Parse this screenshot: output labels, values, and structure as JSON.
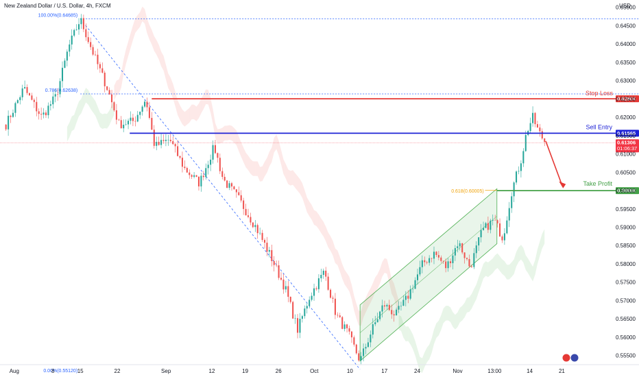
{
  "chart_data": {
    "type": "candlestick",
    "title": "New Zealand Dollar / U.S. Dollar, 4h, FXCM",
    "currency": "USD",
    "ylim": [
      0.5525,
      0.6505
    ],
    "x_ticks": [
      {
        "label": "Aug",
        "pos": 0.024
      },
      {
        "label": "8",
        "pos": 0.089
      },
      {
        "label": "15",
        "pos": 0.135
      },
      {
        "label": "22",
        "pos": 0.197
      },
      {
        "label": "Sep",
        "pos": 0.279
      },
      {
        "label": "12",
        "pos": 0.356
      },
      {
        "label": "19",
        "pos": 0.412
      },
      {
        "label": "26",
        "pos": 0.468
      },
      {
        "label": "Oct",
        "pos": 0.528
      },
      {
        "label": "10",
        "pos": 0.588
      },
      {
        "label": "17",
        "pos": 0.646
      },
      {
        "label": "24",
        "pos": 0.701
      },
      {
        "label": "Nov",
        "pos": 0.769
      },
      {
        "label": "13:00",
        "pos": 0.831
      },
      {
        "label": "14",
        "pos": 0.89
      },
      {
        "label": "21",
        "pos": 0.944
      }
    ],
    "y_ticks": [
      0.65,
      0.645,
      0.64,
      0.635,
      0.63,
      0.625,
      0.62,
      0.615,
      0.61,
      0.605,
      0.6,
      0.595,
      0.59,
      0.585,
      0.58,
      0.575,
      0.57,
      0.565,
      0.56,
      0.555
    ],
    "key_points": [
      {
        "x": 0.01,
        "y": 0.618
      },
      {
        "x": 0.04,
        "y": 0.628
      },
      {
        "x": 0.07,
        "y": 0.62
      },
      {
        "x": 0.095,
        "y": 0.626
      },
      {
        "x": 0.115,
        "y": 0.639
      },
      {
        "x": 0.135,
        "y": 0.6468
      },
      {
        "x": 0.16,
        "y": 0.636
      },
      {
        "x": 0.18,
        "y": 0.628
      },
      {
        "x": 0.2,
        "y": 0.618
      },
      {
        "x": 0.225,
        "y": 0.619
      },
      {
        "x": 0.245,
        "y": 0.625
      },
      {
        "x": 0.26,
        "y": 0.612
      },
      {
        "x": 0.285,
        "y": 0.614
      },
      {
        "x": 0.31,
        "y": 0.606
      },
      {
        "x": 0.335,
        "y": 0.602
      },
      {
        "x": 0.36,
        "y": 0.612
      },
      {
        "x": 0.375,
        "y": 0.603
      },
      {
        "x": 0.4,
        "y": 0.598
      },
      {
        "x": 0.43,
        "y": 0.59
      },
      {
        "x": 0.455,
        "y": 0.582
      },
      {
        "x": 0.48,
        "y": 0.573
      },
      {
        "x": 0.5,
        "y": 0.562
      },
      {
        "x": 0.52,
        "y": 0.571
      },
      {
        "x": 0.545,
        "y": 0.578
      },
      {
        "x": 0.565,
        "y": 0.566
      },
      {
        "x": 0.585,
        "y": 0.561
      },
      {
        "x": 0.605,
        "y": 0.5535
      },
      {
        "x": 0.625,
        "y": 0.562
      },
      {
        "x": 0.645,
        "y": 0.569
      },
      {
        "x": 0.665,
        "y": 0.566
      },
      {
        "x": 0.685,
        "y": 0.571
      },
      {
        "x": 0.71,
        "y": 0.58
      },
      {
        "x": 0.73,
        "y": 0.583
      },
      {
        "x": 0.75,
        "y": 0.579
      },
      {
        "x": 0.77,
        "y": 0.586
      },
      {
        "x": 0.79,
        "y": 0.579
      },
      {
        "x": 0.81,
        "y": 0.589
      },
      {
        "x": 0.83,
        "y": 0.592
      },
      {
        "x": 0.845,
        "y": 0.587
      },
      {
        "x": 0.86,
        "y": 0.6
      },
      {
        "x": 0.875,
        "y": 0.608
      },
      {
        "x": 0.885,
        "y": 0.616
      },
      {
        "x": 0.895,
        "y": 0.62
      },
      {
        "x": 0.905,
        "y": 0.616
      },
      {
        "x": 0.915,
        "y": 0.6135
      }
    ],
    "levels": {
      "stop_loss": {
        "label": "Stop Loss",
        "value": 0.62504,
        "tag": "0.62504",
        "color": "#e53935"
      },
      "sell_entry": {
        "label": "Sell Entry",
        "value": 0.61565,
        "tag": "0.61565",
        "color": "#1e22d6"
      },
      "take_profit": {
        "label": "Take Profit",
        "value": 0.59998,
        "tag": "0.59998",
        "color": "#43a047"
      },
      "current_price": {
        "value": 0.61306,
        "tag": "0.61306",
        "countdown": "01:06:37",
        "color": "#f23645"
      }
    },
    "fib_upper": {
      "label_100": "100.00%(0.64685)",
      "value_100": 0.64685,
      "label_78": "0.786(0.62638)",
      "value_78": 0.62638,
      "label_0": "0.00%(0.55120)",
      "value_0": 0.5512,
      "color": "#2962ff"
    },
    "fib_lower": {
      "label_618": "0.618(0.60005)",
      "value_618": 0.60005,
      "color": "#f0a30a"
    },
    "channel_color": "#4caf50",
    "up_color": "#26a69a",
    "down_color": "#ef5350"
  }
}
